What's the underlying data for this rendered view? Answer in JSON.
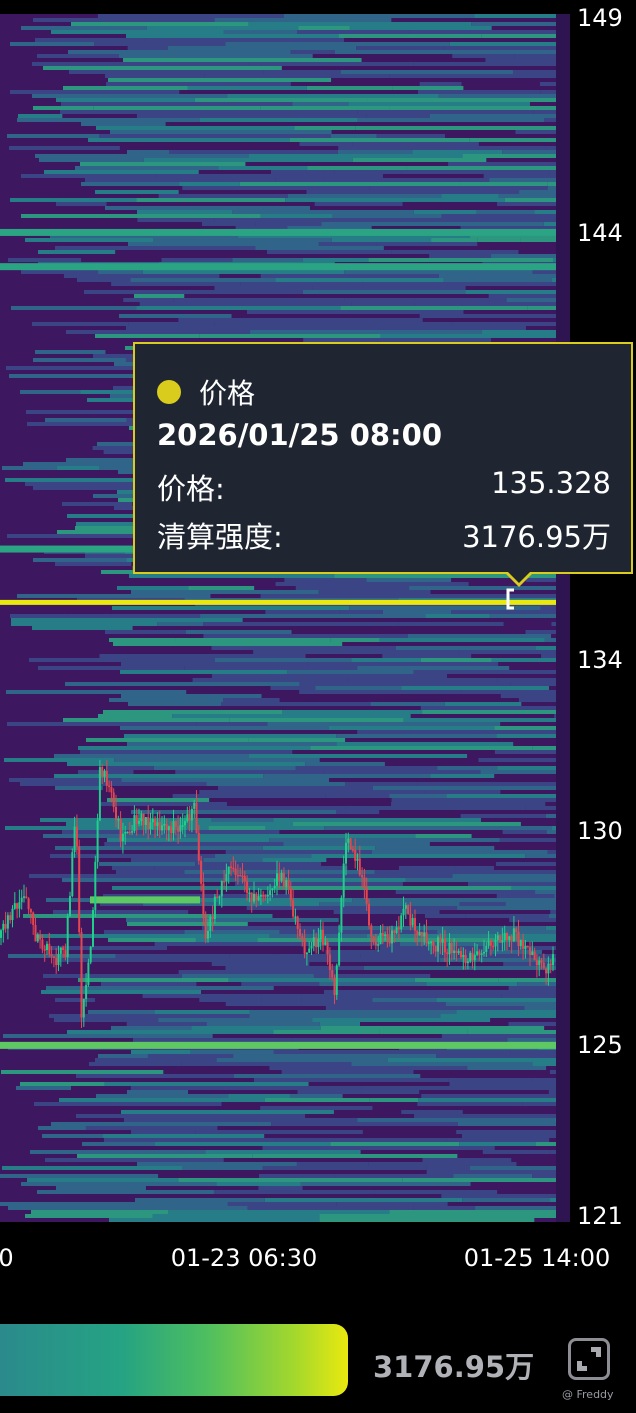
{
  "chart_data": {
    "type": "heatmap",
    "title": "",
    "y_axis": {
      "ticks": [
        149,
        144,
        134,
        130,
        125,
        121
      ],
      "range": [
        121,
        149
      ],
      "position": "right"
    },
    "x_axis": {
      "tick_labels": [
        "0",
        "01-23 06:30",
        "01-25 14:00"
      ]
    },
    "grid": false,
    "colormap": [
      "#3d1760",
      "#3b4a8a",
      "#2f6e8e",
      "#25888c",
      "#2aa482",
      "#5ec962",
      "#e9e90f"
    ],
    "highlight_level": {
      "price": 135.328,
      "color": "#d9cc1c"
    },
    "bright_levels": [
      {
        "price": 135.33,
        "intensity": 1.0
      },
      {
        "price": 125.0,
        "intensity": 0.8
      },
      {
        "price": 128.4,
        "intensity": 0.7
      },
      {
        "price": 136.6,
        "intensity": 0.6
      },
      {
        "price": 144.0,
        "intensity": 0.45
      },
      {
        "price": 143.2,
        "intensity": 0.45
      }
    ],
    "price_path": [
      [
        "01-21 08:00",
        127.5
      ],
      [
        "01-21 12:30",
        128.6
      ],
      [
        "01-21 15:00",
        127.5
      ],
      [
        "01-21 18:30",
        127.0
      ],
      [
        "01-21 20:30",
        127.2
      ],
      [
        "01-21 22:30",
        130.5
      ],
      [
        "01-21 23:30",
        125.7
      ],
      [
        "01-22 01:30",
        127.6
      ],
      [
        "01-22 03:00",
        131.5
      ],
      [
        "01-22 05:00",
        131.1
      ],
      [
        "01-22 07:00",
        129.8
      ],
      [
        "01-22 10:00",
        130.3
      ],
      [
        "01-22 14:30",
        130.1
      ],
      [
        "01-22 18:30",
        130.1
      ],
      [
        "01-22 21:00",
        130.6
      ],
      [
        "01-22 23:00",
        127.4
      ],
      [
        "01-23 01:00",
        128.4
      ],
      [
        "01-23 04:00",
        129.3
      ],
      [
        "01-23 07:30",
        128.4
      ],
      [
        "01-23 10:30",
        128.5
      ],
      [
        "01-23 13:30",
        129.0
      ],
      [
        "01-23 16:00",
        128.0
      ],
      [
        "01-23 18:00",
        127.1
      ],
      [
        "01-23 21:00",
        127.6
      ],
      [
        "01-23 23:30",
        126.3
      ],
      [
        "01-24 01:30",
        129.8
      ],
      [
        "01-24 04:30",
        129.0
      ],
      [
        "01-24 06:30",
        127.4
      ],
      [
        "01-24 10:00",
        127.5
      ],
      [
        "01-24 13:00",
        128.1
      ],
      [
        "01-24 17:00",
        127.4
      ],
      [
        "01-24 20:30",
        127.3
      ],
      [
        "01-25 01:30",
        127.0
      ],
      [
        "01-25 05:00",
        127.3
      ],
      [
        "01-25 09:30",
        127.6
      ],
      [
        "01-25 13:30",
        127.0
      ],
      [
        "01-25 15:30",
        126.8
      ],
      [
        "01-25 17:00",
        127.0
      ]
    ],
    "candle_colors": {
      "up": "#1fd08a",
      "down": "#e8464f"
    }
  },
  "tooltip": {
    "series_name": "价格",
    "datetime": "2026/01/25 08:00",
    "price_label": "价格:",
    "price_value": "135.328",
    "intensity_label": "清算强度:",
    "intensity_value": "3176.95万"
  },
  "legend": {
    "max_value": "3176.95万"
  },
  "controls": {
    "expand_icon": "expand-icon"
  },
  "watermark": "@ Freddy"
}
